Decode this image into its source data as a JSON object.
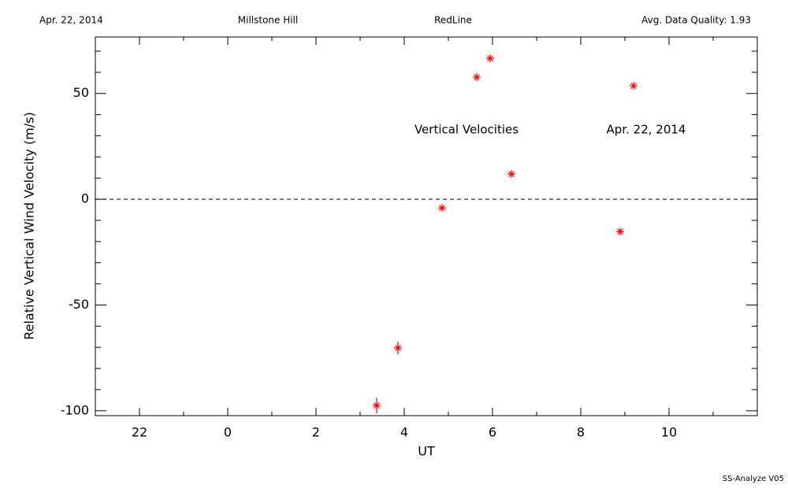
{
  "header": {
    "date": "Apr. 22, 2014",
    "site": "Millstone Hill",
    "instrument": "RedLine",
    "quality": "Avg. Data Quality: 1.93"
  },
  "footer": "SS-Analyze V05",
  "chart_data": {
    "type": "scatter",
    "xlabel": "UT",
    "ylabel": "Relative Vertical Wind Velocity (m/s)",
    "annotations": [
      "Vertical Velocities",
      "Apr. 22, 2014"
    ],
    "series": [
      {
        "name": "Vertical Velocities",
        "color": "#ff0000",
        "x": [
          27.375,
          27.857,
          28.857,
          29.643,
          29.946,
          30.429,
          32.893,
          33.196
        ],
        "values": [
          -97.5,
          -70.3,
          -4.1,
          57.7,
          66.6,
          11.9,
          -15.3,
          53.6
        ],
        "errors": [
          3.7,
          3.0,
          1.0,
          1.0,
          1.0,
          1.0,
          1.0,
          1.0
        ]
      }
    ],
    "xlim": [
      21,
      36
    ],
    "xticks": [
      22,
      {
        "value": 24,
        "label": "0"
      },
      {
        "value": 26,
        "label": "2"
      },
      {
        "value": 28,
        "label": "4"
      },
      {
        "value": 30,
        "label": "6"
      },
      {
        "value": 32,
        "label": "8"
      },
      {
        "value": 34,
        "label": "10"
      }
    ],
    "ylim": [
      -102.3,
      76.7
    ],
    "yticks": [
      -100,
      -50,
      0,
      50
    ],
    "reference_line": 0,
    "grid": false
  }
}
